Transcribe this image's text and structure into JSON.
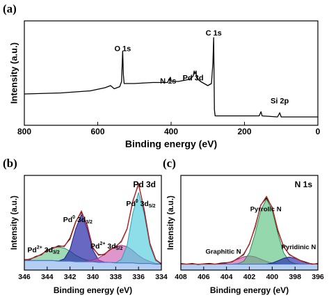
{
  "chart_data": [
    {
      "type": "line",
      "panel": "(a)",
      "xlabel": "Binding energy (eV)",
      "ylabel": "Intensity (a.u.)",
      "xlim": [
        800,
        0
      ],
      "xticks": [
        800,
        600,
        400,
        200,
        0
      ],
      "ylim": [
        0,
        100
      ],
      "x": [
        800,
        700,
        620,
        580,
        565,
        555,
        540,
        535,
        532,
        530,
        528,
        500,
        450,
        410,
        402,
        399,
        380,
        350,
        340,
        337,
        335,
        332,
        330,
        320,
        300,
        290,
        286,
        284,
        282,
        280,
        250,
        200,
        160,
        155,
        152,
        110,
        104,
        100,
        50,
        0
      ],
      "series": [
        {
          "color": "#000000",
          "values": [
            30,
            31,
            33,
            36,
            38,
            35,
            37,
            42,
            71,
            48,
            40,
            40,
            41,
            41,
            46,
            42,
            42,
            44,
            47,
            52,
            49,
            52,
            45,
            42,
            38,
            40,
            60,
            84,
            15,
            9,
            9,
            9,
            9,
            13,
            9,
            8,
            12,
            8,
            8,
            8
          ]
        }
      ],
      "annotations": [
        {
          "parts": [
            {
              "text": "O 1s"
            }
          ]
        },
        {
          "parts": [
            {
              "text": "N 1s"
            }
          ]
        },
        {
          "parts": [
            {
              "text": "Pd 3d"
            }
          ]
        },
        {
          "parts": [
            {
              "text": "C 1s"
            }
          ]
        },
        {
          "parts": [
            {
              "text": "Si 2p"
            }
          ]
        }
      ]
    },
    {
      "type": "line",
      "panel": "(b)",
      "label": "Pd 3d",
      "xlabel": "Binding energy (eV)",
      "ylabel": "Intensity (a.u.)",
      "xlim": [
        346,
        334
      ],
      "xticks": [
        346,
        344,
        342,
        340,
        338,
        336,
        334
      ],
      "ylim": [
        0,
        80
      ],
      "x": [
        346,
        345.5,
        345,
        344.5,
        344,
        343.5,
        343,
        342.5,
        342,
        341.5,
        341,
        340.5,
        340,
        339.5,
        339,
        338.5,
        338,
        337.5,
        337,
        336.5,
        336,
        335.5,
        335,
        334.5,
        334
      ],
      "series": [
        {
          "color": "#2e8b57",
          "fill": "rgba(80,190,120,0.55)",
          "values": [
            8.5,
            9.4,
            11,
            13.5,
            16.5,
            19,
            19.5,
            18.5,
            16,
            12.5,
            10,
            8.4,
            7.5,
            6.7,
            6.5,
            6.5,
            6,
            6,
            6,
            6,
            5.5,
            5.5,
            5.5,
            5,
            5
          ]
        },
        {
          "color": "#1e1e8c",
          "fill": "rgba(40,40,170,0.7)",
          "values": [
            8,
            8,
            8,
            8,
            8,
            8,
            7.7,
            9.5,
            17.5,
            35,
            47,
            35,
            17,
            8.5,
            6.7,
            6.5,
            6,
            6,
            6,
            6,
            5.5,
            5.5,
            5.5,
            5,
            5
          ]
        },
        {
          "color": "#a0307f",
          "fill": "rgba(200,80,170,0.6)",
          "values": [
            8,
            8,
            8,
            8,
            8,
            8,
            7.5,
            7.5,
            7.5,
            7,
            7,
            7.7,
            8.7,
            10.2,
            13.3,
            17,
            19.8,
            21,
            19.8,
            16.5,
            12.3,
            9.2,
            7.2,
            5.7,
            5.2
          ]
        },
        {
          "color": "#2aa0b0",
          "fill": "rgba(80,205,220,0.65)",
          "values": [
            8,
            8,
            8,
            8,
            8,
            8,
            7.5,
            7.5,
            7.5,
            7,
            7,
            7,
            7,
            6.5,
            6.5,
            6.5,
            6.3,
            9,
            21,
            48,
            65.5,
            47.5,
            20.5,
            8,
            5.3
          ]
        },
        {
          "color": "#3f6fd0",
          "fill": "#b4cdf2",
          "values": [
            8,
            8,
            8,
            8,
            8,
            8,
            7.5,
            7.5,
            7.5,
            7,
            7,
            7,
            7,
            6.5,
            6.5,
            6.5,
            6,
            6,
            6,
            6,
            5.5,
            5.5,
            5.5,
            5,
            5
          ]
        },
        {
          "color": "#000000",
          "values": [
            8.8,
            9,
            11.5,
            13,
            17,
            18.5,
            20.5,
            20,
            27,
            41,
            49,
            38,
            18.5,
            13,
            13,
            17.5,
            19.5,
            24.5,
            35,
            58,
            73,
            50,
            22.5,
            9,
            5
          ]
        },
        {
          "color": "#c0282a",
          "values": [
            8.5,
            9.4,
            11,
            13.5,
            16.5,
            19,
            19.7,
            20.5,
            26,
            40.5,
            50,
            37.1,
            19.2,
            12.4,
            13.5,
            17,
            20.1,
            24,
            34.8,
            58.5,
            72.3,
            51.2,
            22.2,
            8.7,
            5.5
          ]
        }
      ],
      "annotations": [
        {
          "parts": [
            {
              "text": "Pd"
            },
            {
              "text": "0",
              "pos": "sup"
            },
            {
              "text": " 3d"
            },
            {
              "text": "3/2",
              "pos": "sub"
            }
          ]
        },
        {
          "parts": [
            {
              "text": "Pd"
            },
            {
              "text": "2+",
              "pos": "sup"
            },
            {
              "text": " 3d"
            },
            {
              "text": "3/2",
              "pos": "sub"
            }
          ]
        },
        {
          "parts": [
            {
              "text": "Pd"
            },
            {
              "text": "2+",
              "pos": "sup"
            },
            {
              "text": " 3d"
            },
            {
              "text": "5/2",
              "pos": "sub"
            }
          ]
        },
        {
          "parts": [
            {
              "text": "Pd"
            },
            {
              "text": "0",
              "pos": "sup"
            },
            {
              "text": " 3d"
            },
            {
              "text": "5/2",
              "pos": "sub"
            }
          ]
        }
      ]
    },
    {
      "type": "line",
      "panel": "(c)",
      "label": "N 1s",
      "xlabel": "Binding energy (eV)",
      "ylabel": "Intensity (a.u.)",
      "xlim": [
        408,
        396
      ],
      "xticks": [
        408,
        406,
        404,
        402,
        400,
        398,
        396
      ],
      "ylim": [
        0,
        80
      ],
      "x": [
        408,
        407.5,
        407,
        406.5,
        406,
        405.5,
        405,
        404.5,
        404,
        403.5,
        403,
        402.5,
        402,
        401.5,
        401,
        400.5,
        400,
        399.5,
        399,
        398.5,
        398,
        397.5,
        397,
        396.5,
        396
      ],
      "series": [
        {
          "name": "Graphitic N",
          "color": "#a0307f",
          "fill": "rgba(200,80,170,0.6)",
          "values": [
            5,
            5,
            5,
            5,
            5,
            5,
            5,
            5.3,
            5.9,
            7.3,
            9.2,
            11.2,
            12,
            11.2,
            9.2,
            7.3,
            5.9,
            5.3,
            5,
            5,
            5,
            5,
            5,
            5,
            5
          ]
        },
        {
          "name": "Pyrrolic N",
          "color": "#2e8b57",
          "fill": "rgba(80,190,120,0.6)",
          "values": [
            5,
            5,
            5,
            5,
            5,
            5,
            5,
            5,
            5,
            5,
            5.4,
            7.4,
            14.6,
            30.7,
            50.5,
            60,
            50.5,
            30.7,
            14.6,
            7.4,
            5.4,
            5,
            5,
            5,
            5
          ]
        },
        {
          "name": "Pyridinic N",
          "color": "#1e1e8c",
          "fill": "rgba(40,40,170,0.65)",
          "values": [
            5,
            5,
            5,
            5,
            5,
            5,
            5,
            5,
            5,
            5,
            5,
            5,
            5,
            5,
            5,
            5,
            6,
            7.8,
            9.9,
            11,
            9.9,
            7.8,
            6,
            5.3,
            5
          ]
        },
        {
          "color": "#3f6fd0",
          "fill": "#b4cdf2",
          "values": [
            5,
            5,
            5,
            5,
            5,
            5,
            5,
            5,
            5,
            5,
            5,
            5,
            5,
            5,
            5,
            5,
            5,
            5,
            5,
            5,
            5,
            5,
            5,
            5,
            5
          ]
        },
        {
          "color": "#000000",
          "values": [
            5.5,
            5,
            5.5,
            4.8,
            5.2,
            5.6,
            5,
            5.8,
            6.2,
            7,
            10,
            13,
            22,
            36,
            55,
            61,
            53,
            33,
            20,
            13,
            10.5,
            8,
            6.5,
            5,
            5.5
          ]
        },
        {
          "color": "#c0282a",
          "values": [
            5,
            5,
            5,
            5,
            5,
            5,
            5,
            5.3,
            5.9,
            7.3,
            9.6,
            13.6,
            21.6,
            36.9,
            54.7,
            62.3,
            52.4,
            33.8,
            19.5,
            13.4,
            10.3,
            7.8,
            6,
            5.3,
            5
          ]
        }
      ]
    }
  ]
}
